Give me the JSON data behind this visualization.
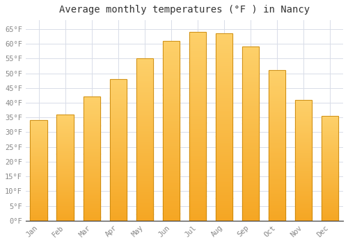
{
  "title": "Average monthly temperatures (°F ) in Nancy",
  "months": [
    "Jan",
    "Feb",
    "Mar",
    "Apr",
    "May",
    "Jun",
    "Jul",
    "Aug",
    "Sep",
    "Oct",
    "Nov",
    "Dec"
  ],
  "values": [
    34,
    36,
    42,
    48,
    55,
    61,
    64,
    63.5,
    59,
    51,
    41,
    35.5
  ],
  "bar_color_top": "#FDD06A",
  "bar_color_bottom": "#F5A623",
  "bar_edge_color": "#C8860A",
  "ylim": [
    0,
    68
  ],
  "yticks": [
    0,
    5,
    10,
    15,
    20,
    25,
    30,
    35,
    40,
    45,
    50,
    55,
    60,
    65
  ],
  "background_color": "#ffffff",
  "plot_bg_color": "#ffffff",
  "grid_color": "#d8dce8",
  "title_fontsize": 10,
  "tick_fontsize": 7.5,
  "tick_font_color": "#888888",
  "title_color": "#333333"
}
